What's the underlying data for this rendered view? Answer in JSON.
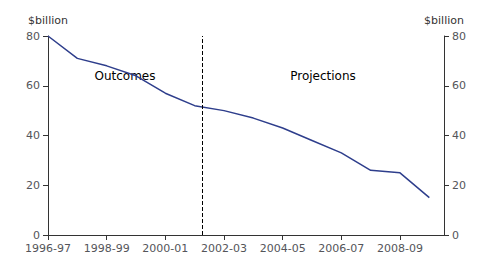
{
  "chart_data": {
    "type": "line",
    "x": [
      1996.5,
      1997.5,
      1998.5,
      1999.5,
      2000.5,
      2001.5,
      2002.5,
      2003.5,
      2004.5,
      2005.5,
      2006.5,
      2007.5,
      2008.5,
      2009.5
    ],
    "values": [
      80,
      71,
      68,
      64,
      57,
      52,
      50,
      47,
      43,
      38,
      33,
      26,
      25,
      15
    ],
    "color": "#2E3E8C",
    "xlim": [
      1996.5,
      2010.0
    ],
    "xticks": [
      {
        "value": 1996.5,
        "label": "1996-97"
      },
      {
        "value": 1998.5,
        "label": "1998-99"
      },
      {
        "value": 2000.5,
        "label": "2000-01"
      },
      {
        "value": 2002.5,
        "label": "2002-03"
      },
      {
        "value": 2004.5,
        "label": "2004-05"
      },
      {
        "value": 2006.5,
        "label": "2006-07"
      },
      {
        "value": 2008.5,
        "label": "2008-09"
      }
    ],
    "ylim": [
      0,
      80
    ],
    "yticks": [
      0,
      20,
      40,
      60,
      80
    ],
    "y2lim": [
      0,
      80
    ],
    "y2ticks": [
      0,
      20,
      40,
      60,
      80
    ],
    "ylabel": "$billion",
    "y2label": "$billion",
    "reference_lines": [
      {
        "x": 2001.75,
        "color": "#000000",
        "line_style": "dashed"
      }
    ],
    "annotations": [
      "Outcomes",
      "Projections"
    ],
    "grid": false
  }
}
